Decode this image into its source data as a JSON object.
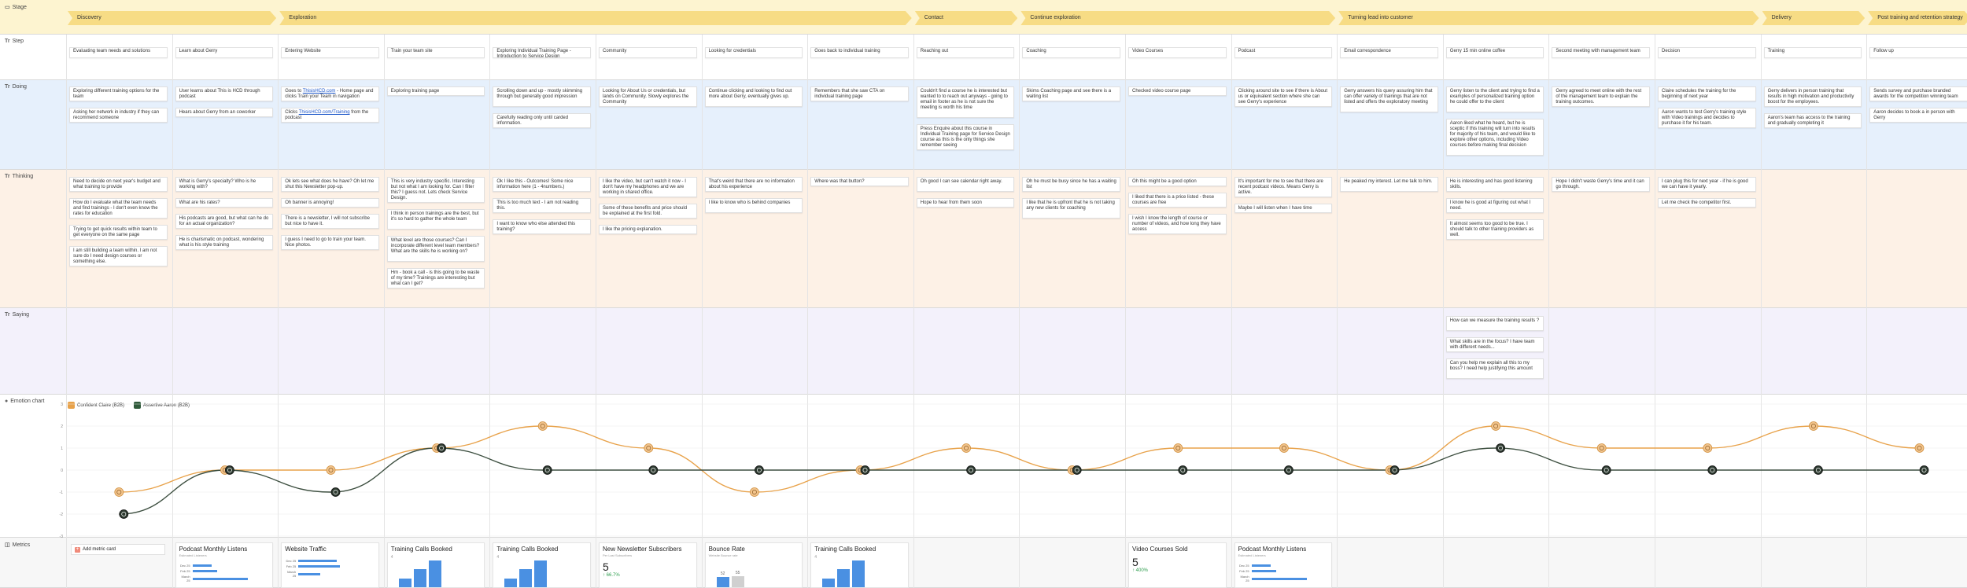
{
  "lanes": {
    "stage": "Stage",
    "step": "Step",
    "doing": "Doing",
    "thinking": "Thinking",
    "saying": "Saying",
    "emotion": "Emotion chart",
    "metrics": "Metrics"
  },
  "stages": [
    {
      "label": "Discovery"
    },
    {
      "label": "Exploration"
    },
    {
      "label": "Contact"
    },
    {
      "label": "Continue exploration"
    },
    {
      "label": "Turning lead into customer"
    },
    {
      "label": "Delivery"
    },
    {
      "label": "Post training and retention strategy"
    }
  ],
  "steps": [
    "Evaluating team needs and solutions",
    "Learn about Gerry",
    "Entering Website",
    "Train your team site",
    "Exploring Individual Training Page - Introduction to Service Design",
    "Community",
    "Looking for credentials",
    "Goes back to individual training",
    "Reaching out",
    "Coaching",
    "Video Courses",
    "Podcast",
    "Email correspondence",
    "Gerry 15 min online coffee",
    "Second meeting with management team",
    "Decision",
    "Training",
    "Follow up"
  ],
  "doing": [
    [
      "Exploring different training options for the team",
      "Asking her network in industry if they can recommend someone"
    ],
    [
      "User learns about This is HCD through podcast",
      "Hears about Gerry from an coworker"
    ],
    [
      "Goes to ThisisHCD.com - Home page and clicks Train your Team in navigation",
      "Clicks ThisisHCD.com/Training from the podcast"
    ],
    [
      "Exploring training page"
    ],
    [
      "Scrolling down and up - mostly skimming through but generally good impression",
      "Carefully reading only until carded information."
    ],
    [
      "Looking for About Us or credentials, but lands on Community. Slowly explores the Community"
    ],
    [
      "Continue clicking and looking to find out more about Gerry, eventually gives up."
    ],
    [
      "Remembers that she saw CTA on individual training page"
    ],
    [
      "Couldn't find a course he is interested but wanted to to reach out anyways - going to email in footer as he is not sure the meeting is worth his time",
      "Press Enquire about this course in Individual Training page for Service Design course as this is the only things she remember seeing"
    ],
    [
      "Skims Coaching page and see there is a waiting list"
    ],
    [
      "Checked video course page"
    ],
    [
      "Clicking around site to see if there is About us or equivalent section where she can see Gerry's experience"
    ],
    [
      "Gerry answers his query assuring him that can offer variety of trainings that are not listed and offers the exploratory meeting"
    ],
    [
      "Gerry listen to the client and trying to find a examples of personalized training option he could offer to the client",
      "Aaron liked what he heard, but he is sceptic if this training will turn into results for majority of his team, and would like to explore other options, including Video courses before making final decision"
    ],
    [
      "Gerry agreed to meet online with the rest of the management team to explain the training outcomes."
    ],
    [
      "Claire schedules the training for the beginning of next year",
      "Aaron wants to test Gerry's training style with Video trainings and decides to purchase it for his team."
    ],
    [
      "Gerry delivers in person training that results in high motivation and productivity boost for the employees.",
      "Aaron's team has access to the training and gradually completing it"
    ],
    [
      "Sends survey and purchase branded awards for the competition winning team",
      "Aaron decides to book a in person with Gerry"
    ]
  ],
  "thinking": [
    [
      "Need to decide on next year's budget and what training to provide",
      "How do I evaluate what the team needs and find trainings - I don't even know the rates for education",
      "Trying to get quick results within team to get everyone on the same page",
      "I am still building a team within. I am not sure do I need design courses or something else."
    ],
    [
      "What is Gerry's specialty? Who is he working with?",
      "What are his rates?",
      "His podcasts are good, but what can he do for an actual organization?",
      "He is charismatic on podcast, wondering what is his style training"
    ],
    [
      "Ok lets see what does he have? Oh let me shut this Newsletter pop-up.",
      "Oh banner is annoying!",
      "There is a newsletter, I will not subscribe but nice to have it.",
      "I guess I need to go to train your team. Nice photos."
    ],
    [
      "This is very industry specific. Interesting but not what I am looking for. Can I filter this? I guess not. Lets check Service Design.",
      "I think in person trainings are the best, but it's so hard to gather the whole team",
      "What level are those courses? Can I incorporate different level team members? What are the skills he is working on?",
      "Hm - book a call - is this going to be waste of my time? Trainings are interesting but what can I get?"
    ],
    [
      "Ok I like this - Outcomes! Some nice information here (1 - 4numbers.)",
      "This is too much text - I am not reading this.",
      "I want to know who else attended this training?"
    ],
    [
      "I like the video, but can't watch it now - I don't have my headphones and we are working in shared office.",
      "Some of these benefits and price should be explained at the first fold.",
      "I like the pricing explanation."
    ],
    [
      "That's weird that there are no information about his experience",
      "I like to know who is behind companies"
    ],
    [
      "Where was that button?"
    ],
    [
      "Oh good I can see calendar right away.",
      "Hope to hear from them soon"
    ],
    [
      "Oh he must be busy since he has a waiting list",
      "I like that he is upfront that he is not taking any new clients for coaching"
    ],
    [
      "Oh this might be a good option",
      "I liked that there is a price listed - these courses are free",
      "I wish I know the length of course or number of videos, and how long they have access"
    ],
    [
      "It's important for me to see that there are recent podcast videos. Means Gerry is active.",
      "Maybe I will listen when I have time"
    ],
    [
      "He peaked my interest. Let me talk to him."
    ],
    [
      "He is interesting and has good listening skills.",
      "I know he is good at figuring out what I need.",
      "It almost seems too good to be true. I should talk to other training providers as well."
    ],
    [
      "Hope I didn't waste Gerry's time and it can go through."
    ],
    [
      "I can plug this for next year - if he is good we can have it yearly.",
      "Let me check the competitor first."
    ],
    [],
    []
  ],
  "saying": [
    "How can we measure the training results ?",
    "What skills are in the focus? I have team with different needs...",
    "Can you help me explain all this to my boss? I need help justifying this amount"
  ],
  "personas": [
    {
      "name": "Confident Claire (B2B)",
      "color": "#e8a24a"
    },
    {
      "name": "Assertive Aaron (B2B)",
      "color": "#2f5a3a"
    }
  ],
  "chart_data": {
    "type": "line",
    "ylim": [
      -3,
      3
    ],
    "series": [
      {
        "name": "Confident Claire (B2B)",
        "color": "#e8a24a",
        "values": [
          -1,
          0,
          0,
          1,
          2,
          1,
          -1,
          0,
          1,
          0,
          1,
          1,
          0,
          2,
          1,
          1,
          2,
          1
        ]
      },
      {
        "name": "Assertive Aaron (B2B)",
        "color": "#3d4f40",
        "values": [
          -2,
          0,
          -1,
          1,
          0,
          0,
          0,
          0,
          0,
          0,
          0,
          0,
          0,
          1,
          0,
          0,
          0,
          0
        ]
      }
    ]
  },
  "metrics": {
    "add_label": "Add metric card",
    "cards": [
      {
        "col": 1,
        "title": "Podcast Monthly Listens",
        "sub": "Estimated Listeners",
        "kind": "hbar",
        "rows": [
          {
            "label": "Dec 25",
            "value": 35
          },
          {
            "label": "Feb 25",
            "value": 45
          },
          {
            "label": "March 25",
            "value": 100
          }
        ]
      },
      {
        "col": 2,
        "title": "Website Traffic",
        "sub": "",
        "kind": "hbar",
        "rows": [
          {
            "label": "Dec 25",
            "value": 70
          },
          {
            "label": "Feb 25",
            "value": 75
          },
          {
            "label": "March 25",
            "value": 40
          }
        ]
      },
      {
        "col": 3,
        "title": "Training Calls Booked",
        "sub": "",
        "kind": "vbar",
        "axis": "4",
        "bars": [
          {
            "value": 1
          },
          {
            "value": 2
          },
          {
            "value": 3
          }
        ]
      },
      {
        "col": 4,
        "title": "Training Calls Booked",
        "sub": "",
        "kind": "vbar",
        "axis": "4",
        "bars": [
          {
            "value": 1
          },
          {
            "value": 2
          },
          {
            "value": 3
          }
        ]
      },
      {
        "col": 5,
        "title": "New Newsletter Subscribers",
        "sub": "Per Last Subscribers",
        "kind": "number",
        "number": "5",
        "delta": "↑ 66.7%"
      },
      {
        "col": 6,
        "title": "Bounce Rate",
        "sub": "Website Bounce rate",
        "kind": "vbar",
        "axis": "",
        "bars": [
          {
            "value": 52,
            "label": "52"
          },
          {
            "value": 55,
            "label": "55",
            "grey": true
          }
        ]
      },
      {
        "col": 7,
        "title": "Training Calls Booked",
        "sub": "",
        "kind": "vbar",
        "axis": "4",
        "bars": [
          {
            "value": 1
          },
          {
            "value": 2
          },
          {
            "value": 3
          }
        ]
      },
      {
        "col": 10,
        "title": "Video Courses Sold",
        "sub": "",
        "kind": "number",
        "number": "5",
        "delta": "↑ 400%"
      },
      {
        "col": 11,
        "title": "Podcast Monthly Listens",
        "sub": "Estimated Listeners",
        "kind": "hbar",
        "rows": [
          {
            "label": "Dec 25",
            "value": 35
          },
          {
            "label": "Feb 25",
            "value": 45
          },
          {
            "label": "March 25",
            "value": 100
          }
        ]
      }
    ]
  }
}
